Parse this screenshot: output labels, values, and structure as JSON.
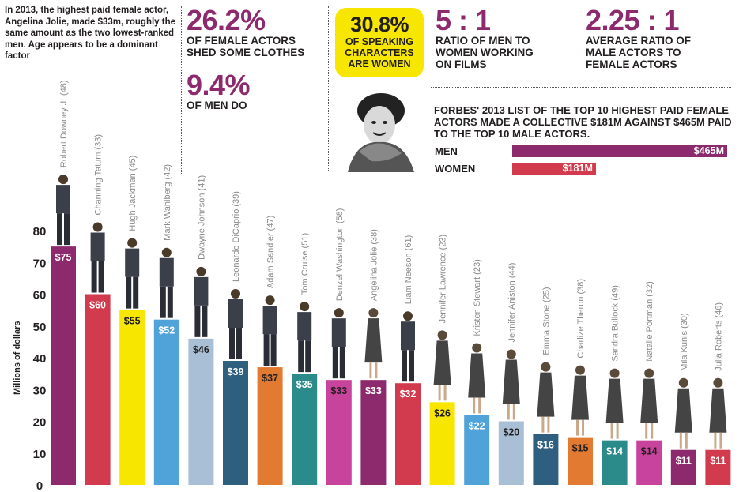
{
  "intro_text": "In 2013, the highest paid female actor, Angelina Jolie, made $33m, roughly the same amount as the two lowest-ranked men. Age appears to be a dominant factor",
  "stats": {
    "female_clothes": {
      "value": "26.2%",
      "text": "OF FEMALE ACTORS SHED SOME CLOTHES"
    },
    "male_clothes": {
      "value": "9.4%",
      "text": "OF MEN DO"
    },
    "speaking": {
      "value": "30.8%",
      "text": "OF SPEAKING CHARACTERS ARE WOMEN"
    },
    "working_ratio": {
      "value": "5 : 1",
      "text": "RATIO OF MEN TO WOMEN WORKING ON FILMS"
    },
    "actor_ratio": {
      "value": "2.25 : 1",
      "text": "AVERAGE RATIO OF MALE ACTORS TO FEMALE ACTORS"
    }
  },
  "forbes_text": "FORBES' 2013 LIST OF THE TOP 10 HIGHEST PAID FEMALE ACTORS MADE A COLLECTIVE $181M AGAINST $465M PAID TO THE TOP 10 MALE ACTORS.",
  "totals": [
    {
      "label": "MEN",
      "value": 465,
      "display": "$465M",
      "color": "#8d2a6d"
    },
    {
      "label": "WOMEN",
      "value": 181,
      "display": "$181M",
      "color": "#d23b4e"
    }
  ],
  "chart_data": {
    "type": "bar",
    "title": "",
    "xlabel": "",
    "ylabel": "Millions of dollars",
    "ylim": [
      0,
      80
    ],
    "yticks": [
      0,
      10,
      20,
      30,
      40,
      50,
      60,
      70,
      80
    ],
    "categories": [
      "Robert Downey Jr (48)",
      "Channing Tatum (33)",
      "Hugh Jackman (45)",
      "Mark Wahlberg (42)",
      "Dwayne Johnson (41)",
      "Leonardo DiCaprio (39)",
      "Adam Sandler (47)",
      "Tom Cruise (51)",
      "Denzel Washington (58)",
      "Angelina Jolie (38)",
      "Liam Neeson (61)",
      "Jennifer Lawrence (23)",
      "Kristen Stewart (23)",
      "Jennifer Aniston (44)",
      "Emma Stone (25)",
      "Charlize Theron (38)",
      "Sandra Bullock (49)",
      "Natalie Portman (32)",
      "Mila Kunis (30)",
      "Julia Roberts (46)"
    ],
    "values": [
      75,
      60,
      55,
      52,
      46,
      39,
      37,
      35,
      33,
      33,
      32,
      26,
      22,
      20,
      16,
      15,
      14,
      14,
      11,
      11
    ],
    "value_labels": [
      "$75",
      "$60",
      "$55",
      "$52",
      "$46",
      "$39",
      "$37",
      "$35",
      "$33",
      "$33",
      "$32",
      "$26",
      "$22",
      "$20",
      "$16",
      "$15",
      "$14",
      "$14",
      "$11",
      "$11"
    ],
    "colors": [
      "#8d2a6d",
      "#d23b4e",
      "#f6e600",
      "#4fa3d9",
      "#a9bfd6",
      "#2f5f7f",
      "#e27a31",
      "#2b8a8a",
      "#c8449c",
      "#8d2a6d",
      "#d23b4e",
      "#f6e600",
      "#4fa3d9",
      "#a9bfd6",
      "#2f5f7f",
      "#e27a31",
      "#2b8a8a",
      "#c8449c",
      "#8d2a6d",
      "#d23b4e"
    ],
    "label_dark": [
      false,
      false,
      true,
      false,
      true,
      false,
      true,
      false,
      true,
      false,
      false,
      true,
      false,
      true,
      false,
      true,
      false,
      true,
      false,
      false
    ]
  }
}
